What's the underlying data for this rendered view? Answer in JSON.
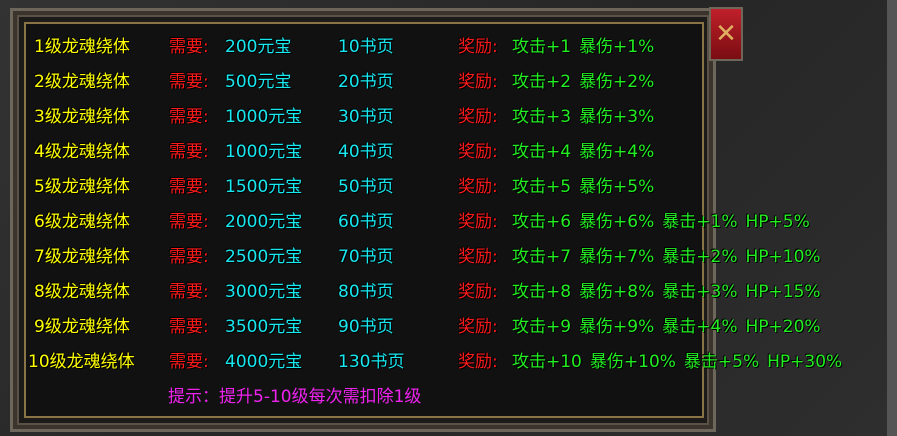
{
  "rows": [
    {
      "name": "1级龙魂绕体",
      "req_label": "需要:",
      "ingot": "200元宝",
      "pages": "10书页",
      "reward_label": "奖励:",
      "rewards": [
        "攻击+1",
        "暴伤+1%"
      ]
    },
    {
      "name": "2级龙魂绕体",
      "req_label": "需要:",
      "ingot": "500元宝",
      "pages": "20书页",
      "reward_label": "奖励:",
      "rewards": [
        "攻击+2",
        "暴伤+2%"
      ]
    },
    {
      "name": "3级龙魂绕体",
      "req_label": "需要:",
      "ingot": "1000元宝",
      "pages": "30书页",
      "reward_label": "奖励:",
      "rewards": [
        "攻击+3",
        "暴伤+3%"
      ]
    },
    {
      "name": "4级龙魂绕体",
      "req_label": "需要:",
      "ingot": "1000元宝",
      "pages": "40书页",
      "reward_label": "奖励:",
      "rewards": [
        "攻击+4",
        "暴伤+4%"
      ]
    },
    {
      "name": "5级龙魂绕体",
      "req_label": "需要:",
      "ingot": "1500元宝",
      "pages": "50书页",
      "reward_label": "奖励:",
      "rewards": [
        "攻击+5",
        "暴伤+5%"
      ]
    },
    {
      "name": "6级龙魂绕体",
      "req_label": "需要:",
      "ingot": "2000元宝",
      "pages": "60书页",
      "reward_label": "奖励:",
      "rewards": [
        "攻击+6",
        "暴伤+6%",
        "暴击+1%",
        "HP+5%"
      ]
    },
    {
      "name": "7级龙魂绕体",
      "req_label": "需要:",
      "ingot": "2500元宝",
      "pages": "70书页",
      "reward_label": "奖励:",
      "rewards": [
        "攻击+7",
        "暴伤+7%",
        "暴击+2%",
        "HP+10%"
      ]
    },
    {
      "name": "8级龙魂绕体",
      "req_label": "需要:",
      "ingot": "3000元宝",
      "pages": "80书页",
      "reward_label": "奖励:",
      "rewards": [
        "攻击+8",
        "暴伤+8%",
        "暴击+3%",
        "HP+15%"
      ]
    },
    {
      "name": "9级龙魂绕体",
      "req_label": "需要:",
      "ingot": "3500元宝",
      "pages": "90书页",
      "reward_label": "奖励:",
      "rewards": [
        "攻击+9",
        "暴伤+9%",
        "暴击+4%",
        "HP+20%"
      ]
    },
    {
      "name": "10级龙魂绕体",
      "req_label": "需要:",
      "ingot": "4000元宝",
      "pages": "130书页",
      "reward_label": "奖励:",
      "rewards": [
        "攻击+10",
        "暴伤+10%",
        "暴击+5%",
        "HP+30%"
      ]
    }
  ],
  "hint": "提示：提升5-10级每次需扣除1级",
  "close_icon": "close-x-icon"
}
